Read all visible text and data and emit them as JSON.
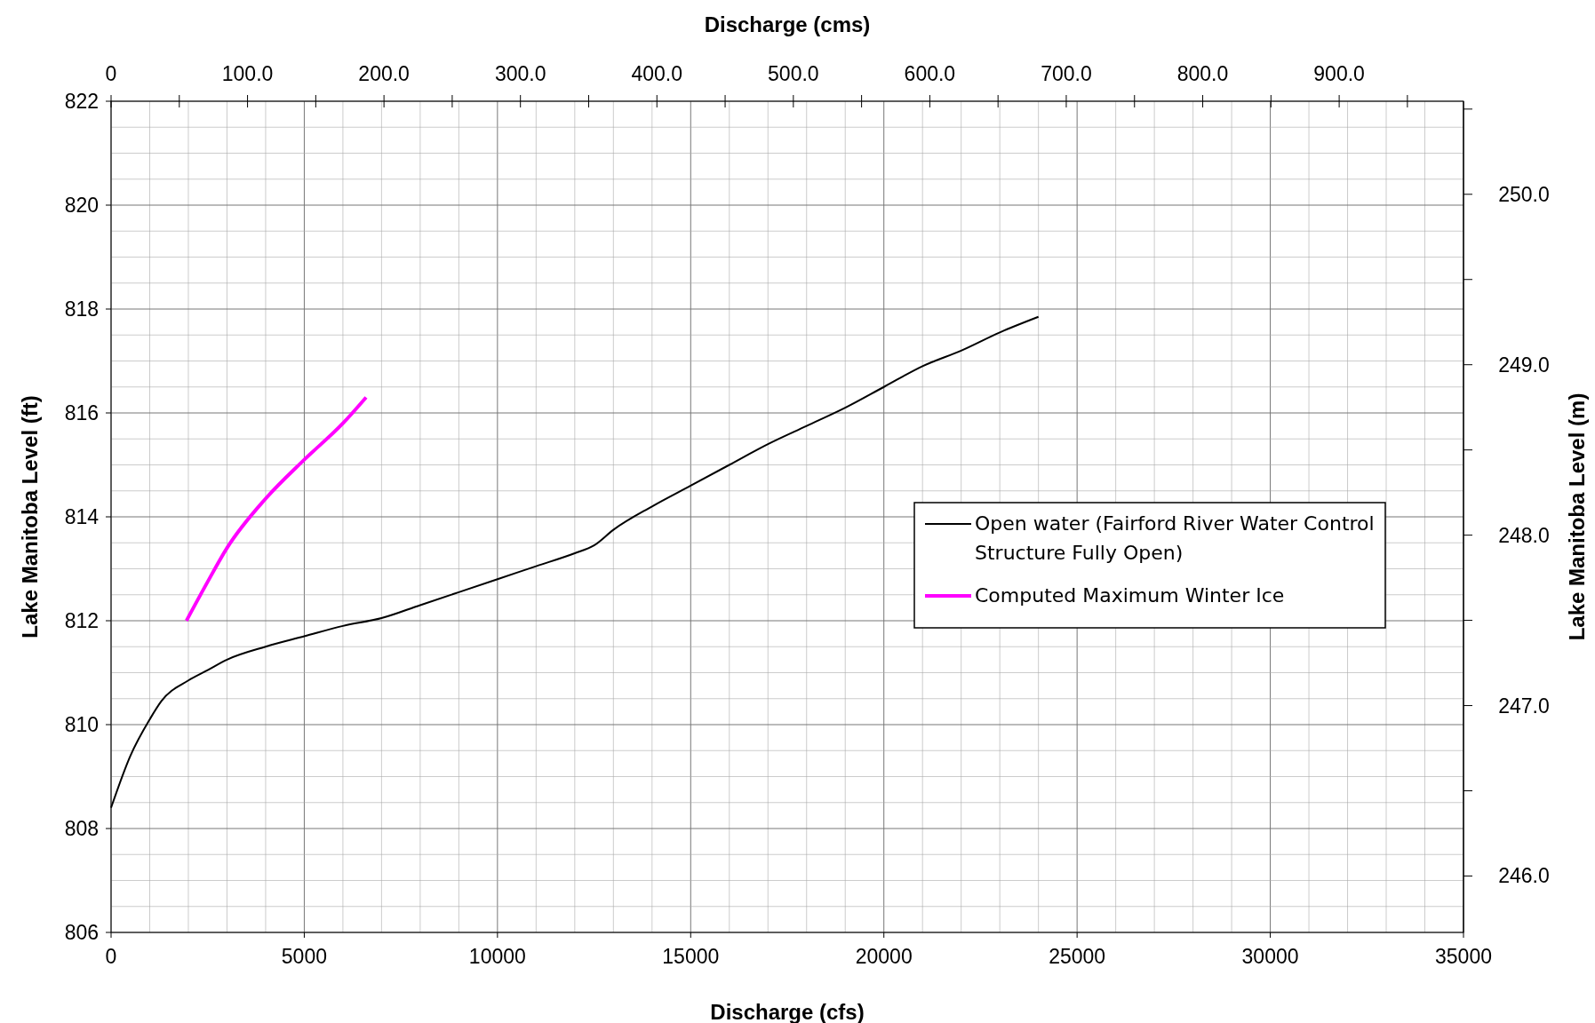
{
  "chart_data": {
    "type": "line",
    "xlabel": "Discharge (cfs)",
    "ylabel": "Lake Manitoba Level (ft)",
    "x2label": "Discharge (cms)",
    "y2label": "Lake Manitoba Level (m)",
    "xlim": [
      0,
      35000
    ],
    "xticks": [
      0,
      5000,
      10000,
      15000,
      20000,
      25000,
      30000,
      35000
    ],
    "ylim": [
      806,
      822
    ],
    "yticks": [
      806,
      808,
      810,
      812,
      814,
      816,
      818,
      820,
      822
    ],
    "x2lim": [
      0,
      991.1
    ],
    "x2ticks": [
      0,
      {
        "value": 50,
        "label": null
      },
      {
        "value": 100,
        "label": "100.0"
      },
      {
        "value": 150,
        "label": null
      },
      {
        "value": 200,
        "label": "200.0"
      },
      {
        "value": 250,
        "label": null
      },
      {
        "value": 300,
        "label": "300.0"
      },
      {
        "value": 350,
        "label": null
      },
      {
        "value": 400,
        "label": "400.0"
      },
      {
        "value": 450,
        "label": null
      },
      {
        "value": 500,
        "label": "500.0"
      },
      {
        "value": 550,
        "label": null
      },
      {
        "value": 600,
        "label": "600.0"
      },
      {
        "value": 650,
        "label": null
      },
      {
        "value": 700,
        "label": "700.0"
      },
      {
        "value": 750,
        "label": null
      },
      {
        "value": 800,
        "label": "800.0"
      },
      {
        "value": 850,
        "label": null
      },
      {
        "value": 900,
        "label": "900.0"
      },
      {
        "value": 950,
        "label": null
      }
    ],
    "y2lim": [
      245.669,
      250.546
    ],
    "y2ticks": [
      {
        "value": 246,
        "label": "246.0"
      },
      {
        "value": 246.5,
        "label": null
      },
      {
        "value": 247,
        "label": "247.0"
      },
      {
        "value": 247.5,
        "label": null
      },
      {
        "value": 248,
        "label": "248.0"
      },
      {
        "value": 248.5,
        "label": null
      },
      {
        "value": 249,
        "label": "249.0"
      },
      {
        "value": 249.5,
        "label": null
      },
      {
        "value": 250,
        "label": "250.0"
      },
      {
        "value": 250.5,
        "label": null
      }
    ],
    "grid": true,
    "legend": "right",
    "marker": "none",
    "line_style": "solid",
    "series": [
      {
        "name": "Open water (Fairford River Water Control Structure Fully Open)",
        "color": "#000000",
        "x": [
          0,
          500,
          1000,
          1300,
          2000,
          2500,
          3000,
          4000,
          5000,
          6000,
          7000,
          8000,
          9000,
          10000,
          11000,
          12000,
          12500,
          13000,
          14000,
          15000,
          16000,
          17000,
          18000,
          19000,
          20000,
          21000,
          22000,
          23000,
          24000
        ],
        "values": [
          808.4,
          809.4,
          810.1,
          810.45,
          810.85,
          811.05,
          811.25,
          811.5,
          811.7,
          811.9,
          812.05,
          812.3,
          812.55,
          812.8,
          813.05,
          813.3,
          813.45,
          813.75,
          814.2,
          814.6,
          815.0,
          815.4,
          815.75,
          816.1,
          816.5,
          816.9,
          817.2,
          817.55,
          817.85
        ]
      },
      {
        "name": "Computed Maximum Winter Ice",
        "color": "#ff00ff",
        "x": [
          1950,
          2500,
          3000,
          4000,
          5000,
          6000,
          6600
        ],
        "values": [
          812.0,
          812.75,
          813.4,
          814.35,
          815.1,
          815.8,
          816.3
        ]
      }
    ]
  }
}
